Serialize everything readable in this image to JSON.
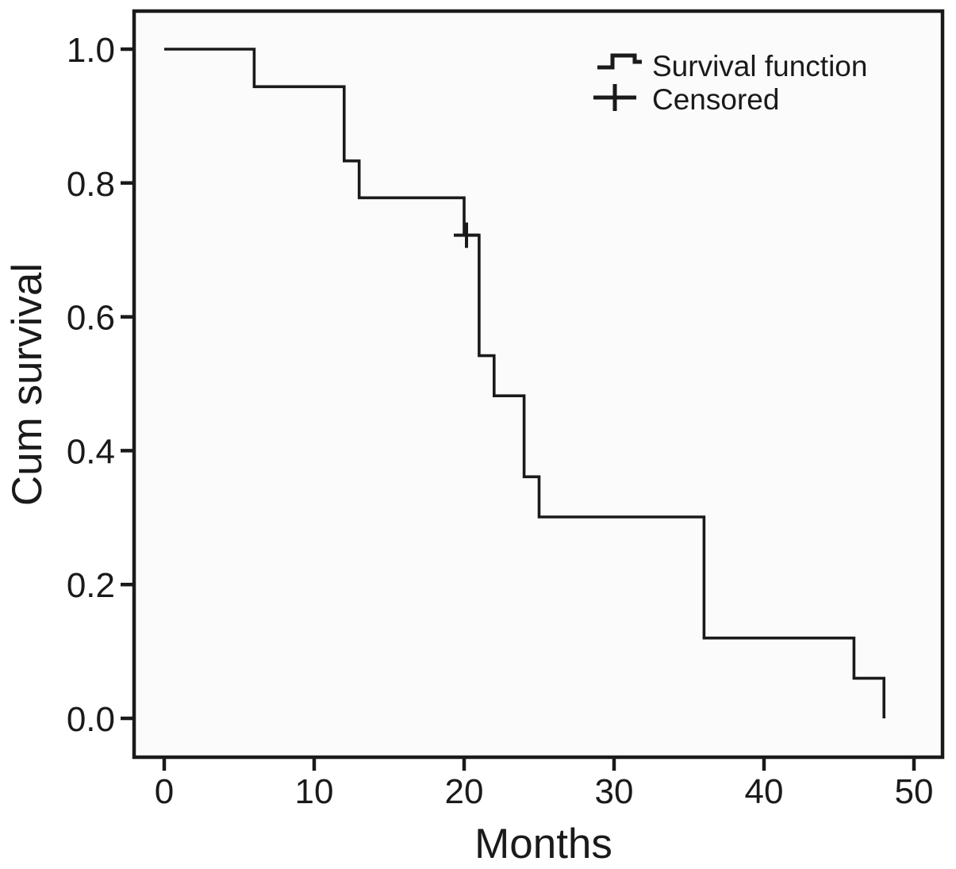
{
  "figure": {
    "background": "#ffffff",
    "plot_background": "#fbfbfb",
    "line_color": "#1a1a1a"
  },
  "chart_data": {
    "type": "line",
    "subtype": "kaplan-meier-step",
    "title": "",
    "xlabel": "Months",
    "ylabel": "Cum survival",
    "xlim": [
      0,
      50
    ],
    "ylim": [
      0.0,
      1.0
    ],
    "xticks": [
      "0",
      "10",
      "20",
      "30",
      "40",
      "50"
    ],
    "xtick_values": [
      0,
      10,
      20,
      30,
      40,
      50
    ],
    "yticks": [
      "1.0",
      "0.8",
      "0.6",
      "0.4",
      "0.2",
      "0.0"
    ],
    "ytick_values": [
      1.0,
      0.8,
      0.6,
      0.4,
      0.2,
      0.0
    ],
    "grid": false,
    "legend_position": "top-right",
    "legend": [
      "Survival function",
      "Censored"
    ],
    "series": [
      {
        "name": "Survival function",
        "points": [
          [
            0,
            1.0
          ],
          [
            6,
            0.944
          ],
          [
            12,
            0.833
          ],
          [
            13,
            0.778
          ],
          [
            20,
            0.722
          ],
          [
            21,
            0.542
          ],
          [
            22,
            0.482
          ],
          [
            24,
            0.361
          ],
          [
            25,
            0.301
          ],
          [
            36,
            0.12
          ],
          [
            46,
            0.06
          ],
          [
            48,
            0.0
          ]
        ]
      }
    ],
    "censored_points": [
      [
        20,
        0.722
      ]
    ]
  }
}
